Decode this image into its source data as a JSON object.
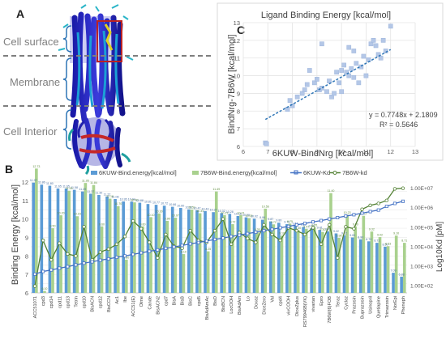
{
  "panels": {
    "a": {
      "letter": "A",
      "regions": [
        "Cell surface",
        "Membrane",
        "Cell Interior"
      ]
    },
    "c": {
      "letter": "C",
      "chart_data": {
        "type": "scatter",
        "title": "Ligand Binding Energy [kcal/mol]",
        "xlabel": "6KUW-BindNrg [kcal/mol]",
        "ylabel": "BindNrg-7B6W [kcal/mol]",
        "xlim": [
          6,
          13
        ],
        "ylim": [
          6,
          13
        ],
        "xticks": [
          6,
          7,
          8,
          9,
          10,
          11,
          12,
          13
        ],
        "yticks": [
          6,
          7,
          8,
          9,
          10,
          11,
          12,
          13
        ],
        "grid": true,
        "marker_color": "#b4c7e7",
        "trend_color": "#2e75b6",
        "equation": "y = 0.7748x + 2.1809",
        "r2": "R² = 0.5646",
        "trend": {
          "slope": 0.7748,
          "intercept": 2.1809,
          "x_from": 6.9,
          "x_to": 12.0
        },
        "points": [
          [
            6.9,
            6.2
          ],
          [
            6.95,
            6.15
          ],
          [
            7.8,
            8.1
          ],
          [
            7.9,
            8.6
          ],
          [
            8.0,
            8.3
          ],
          [
            8.2,
            8.8
          ],
          [
            8.4,
            9.0
          ],
          [
            8.5,
            9.2
          ],
          [
            8.6,
            9.5
          ],
          [
            8.7,
            10.3
          ],
          [
            8.9,
            9.6
          ],
          [
            9.0,
            9.8
          ],
          [
            9.1,
            9.2
          ],
          [
            9.2,
            9.3
          ],
          [
            9.2,
            11.8
          ],
          [
            9.4,
            9.1
          ],
          [
            9.5,
            9.7
          ],
          [
            9.6,
            8.8
          ],
          [
            9.7,
            9.0
          ],
          [
            9.8,
            10.2
          ],
          [
            9.9,
            9.6
          ],
          [
            10.0,
            10.3
          ],
          [
            10.0,
            9.1
          ],
          [
            10.1,
            10.6
          ],
          [
            10.2,
            10.2
          ],
          [
            10.3,
            11.6
          ],
          [
            10.3,
            10.0
          ],
          [
            10.4,
            10.4
          ],
          [
            10.5,
            9.9
          ],
          [
            10.5,
            11.4
          ],
          [
            10.6,
            10.7
          ],
          [
            10.7,
            9.6
          ],
          [
            10.8,
            10.5
          ],
          [
            10.9,
            11.1
          ],
          [
            11.0,
            10.0
          ],
          [
            11.1,
            10.9
          ],
          [
            11.2,
            11.8
          ],
          [
            11.3,
            12.0
          ],
          [
            11.4,
            11.7
          ],
          [
            11.5,
            11.2
          ],
          [
            11.6,
            11.0
          ],
          [
            11.7,
            12.0
          ],
          [
            11.8,
            11.4
          ],
          [
            12.0,
            12.8
          ]
        ]
      }
    },
    "b": {
      "letter": "B",
      "chart_data": {
        "type": "bar",
        "ylabel": "Binding Energy [kcal/mol]",
        "y2label": "Log10Kd [pM]",
        "ylim": [
          6,
          12
        ],
        "yticks": [
          6,
          6.5,
          7,
          7.5,
          8,
          8.5,
          9,
          9.5,
          10,
          10.5,
          11,
          11.5,
          12
        ],
        "y2ticks": [
          "1.00E+02",
          "1.00E+03",
          "1.00E+04",
          "1.00E+05",
          "1.00E+06",
          "1.00E+07"
        ],
        "y2lim_log": [
          1.6,
          7.3
        ],
        "colors": {
          "bar1": "#5b9bd5",
          "bar2": "#a9d18e",
          "line1": "#4472c4",
          "line2": "#548235"
        },
        "series_labels": [
          "6KUW-Bind.energy[kcal/mol]",
          "7B6W-Bind.energy[kcal/mol]",
          "6KUW-Kd",
          "7B6W-kd"
        ],
        "categories": [
          "ACC51071",
          "cpd3",
          "cpd14",
          "cpd11",
          "cpd13",
          "Tetrin",
          "cpd10",
          "BisACN",
          "cpd12",
          "BisCCN",
          "Ac1",
          "Ibe",
          "ACC51(E)",
          "Olme",
          "Cande",
          "BisACN2",
          "cpd7",
          "BisA",
          "BisB",
          "BisC",
          "cpd5",
          "BisAdAmAc",
          "BisD",
          "BisBCN",
          "LocOOH",
          "BisAdAm",
          "Lo",
          "Doxaz",
          "DiceZero",
          "Val",
          "cpd4",
          "vivCOOH",
          "DiceZplus",
          "RS79946B(VK)",
          "vivartan",
          "Epro",
          "7B6W(6)FOB",
          "Teraz",
          "Cyclaz",
          "Prazosin",
          "Buprazosin",
          "Usinopril",
          "Quetiapine",
          "Trimazosin",
          "NorEpi",
          "Pheneph"
        ],
        "series": [
          {
            "name": "6KUW-Bind.energy[kcal/mol]",
            "values": [
              11.97,
              11.86,
              11.8,
              11.65,
              11.65,
              11.58,
              11.49,
              11.37,
              11.3,
              11.22,
              11.08,
              10.95,
              10.94,
              10.88,
              10.81,
              10.77,
              10.72,
              10.66,
              10.6,
              10.52,
              10.47,
              10.43,
              10.37,
              10.32,
              10.28,
              10.16,
              10.09,
              10.02,
              9.96,
              9.87,
              9.8,
              9.72,
              9.64,
              9.57,
              9.5,
              9.41,
              9.33,
              9.22,
              9.12,
              9.0,
              8.9,
              8.79,
              8.71,
              8.5,
              7.09,
              6.88
            ]
          },
          {
            "name": "7B6W-Bind.energy[kcal/mol]",
            "values": [
              12.73,
              6.1,
              9.5,
              10.2,
              11.53,
              10.15,
              11.95,
              11.84,
              9.6,
              11.1,
              10.7,
              7.8,
              10.9,
              9.6,
              10.1,
              10.3,
              9.9,
              10.07,
              8.1,
              10.51,
              10.31,
              8.25,
              11.49,
              10.21,
              9.72,
              10.21,
              10.05,
              9.3,
              10.56,
              9.71,
              9.1,
              9.75,
              9.4,
              9.47,
              9.55,
              9.3,
              11.4,
              8.98,
              10.23,
              9.6,
              10.17,
              9.32,
              9.02,
              8.53,
              9.1,
              8.71
            ]
          },
          {
            "name": "6KUW-Kd",
            "values_log": [
              2.56,
              2.7,
              2.78,
              2.87,
              2.95,
              3.04,
              3.13,
              3.2,
              3.28,
              3.35,
              3.43,
              3.5,
              3.58,
              3.66,
              3.74,
              3.81,
              3.89,
              3.96,
              4.04,
              4.12,
              4.19,
              4.27,
              4.35,
              4.42,
              4.5,
              4.57,
              4.65,
              4.72,
              4.8,
              4.87,
              4.95,
              5.02,
              5.1,
              5.17,
              5.25,
              5.32,
              5.4,
              5.47,
              5.55,
              5.62,
              5.7,
              5.78,
              5.86,
              6.05,
              6.2,
              6.31
            ]
          },
          {
            "name": "7B6W-kd",
            "values_log": [
              1.95,
              4.3,
              3.3,
              4.15,
              3.6,
              3.5,
              5.0,
              3.3,
              3.7,
              3.85,
              4.1,
              4.5,
              5.3,
              4.9,
              4.2,
              3.4,
              4.6,
              4.0,
              3.9,
              4.8,
              4.3,
              4.2,
              4.8,
              5.4,
              4.1,
              4.7,
              4.4,
              4.2,
              5.1,
              4.6,
              4.3,
              4.95,
              4.8,
              4.6,
              4.95,
              4.1,
              5.1,
              3.4,
              5.0,
              4.9,
              5.9,
              6.1,
              6.2,
              6.35,
              6.95,
              6.98
            ]
          }
        ],
        "bar1_labels": [
          "11.97",
          "11.86",
          "11.80",
          "11.65",
          "11.65",
          "11.58",
          "11.49",
          "11.37",
          "11.30",
          "11.22",
          "11.08",
          "10.95",
          "10.94",
          "10.88",
          "10.81",
          "10.77",
          "10.72",
          "10.66",
          "10.60",
          "10.52",
          "10.47",
          "10.43",
          "10.37",
          "10.32",
          "10.28",
          "10.16",
          "10.09",
          "10.02",
          "9.96",
          "9.87",
          "9.80",
          "9.72",
          "9.64",
          "9.57",
          "9.50",
          "9.41",
          "9.33",
          "9.22",
          "9.12",
          "9.00",
          "8.90",
          "8.79",
          "8.71",
          "8.50",
          "7.09",
          "6.88"
        ],
        "bar2_labels": [
          "12.73",
          "6.10",
          "9.50",
          "10.20",
          "11.53",
          "10.15",
          "11.95",
          "11.84",
          "9.60",
          "11.10",
          "10.70",
          "7.80",
          "10.90",
          "9.60",
          "10.10",
          "10.30",
          "9.90",
          "10.07",
          "8.10",
          "10.51",
          "10.31",
          "8.25",
          "11.49",
          "10.21",
          "9.72",
          "10.21",
          "10.05",
          "9.30",
          "10.56",
          "9.71",
          "9.10",
          "9.75",
          "9.40",
          "9.47",
          "9.55",
          "9.30",
          "11.40",
          "8.98",
          "10.23",
          "9.60",
          "10.17",
          "9.32",
          "9.02",
          "8.53",
          "9.10",
          "8.71"
        ]
      }
    }
  }
}
